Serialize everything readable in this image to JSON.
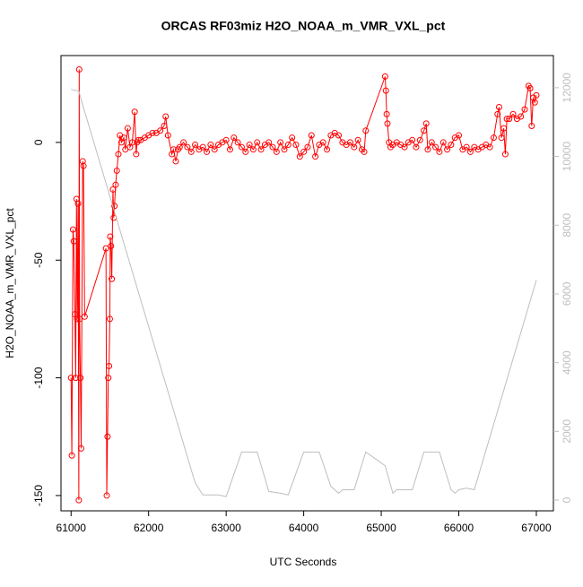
{
  "chart_data": {
    "type": "line",
    "title": "ORCAS RF03miz H2O_NOAA_m_VMR_VXL_pct",
    "xlabel": "UTC Seconds",
    "ylabel": "H2O_NOAA_m_VMR_VXL_pct",
    "xlim": [
      60870,
      67220
    ],
    "xticks": [
      61000,
      62000,
      63000,
      64000,
      65000,
      66000,
      67000
    ],
    "ylim": [
      -156.5,
      36.9
    ],
    "yticks": [
      -150,
      -100,
      -50,
      0
    ],
    "y2lim": [
      -313,
      12936
    ],
    "y2ticks": [
      0,
      2000,
      4000,
      6000,
      8000,
      10000,
      12000
    ],
    "grid": false,
    "series": [
      {
        "color": "#ff0000",
        "marker": "circle",
        "x": [
          61000,
          61010,
          61025,
          61035,
          61050,
          61060,
          61070,
          61080,
          61090,
          61100,
          61105,
          61110,
          61120,
          61130,
          61150,
          61160,
          61175,
          61450,
          61460,
          61470,
          61480,
          61490,
          61500,
          61505,
          61515,
          61525,
          61540,
          61550,
          61560,
          61575,
          61590,
          61610,
          61630,
          61650,
          61680,
          61700,
          61730,
          61760,
          61790,
          61820,
          61840,
          61850,
          61870,
          61900,
          61950,
          62000,
          62050,
          62100,
          62150,
          62200,
          62220,
          62250,
          62300,
          62320,
          62350,
          62380,
          62400,
          62450,
          62500,
          62550,
          62600,
          62650,
          62700,
          62750,
          62800,
          62850,
          62900,
          62950,
          63000,
          63050,
          63100,
          63150,
          63200,
          63250,
          63300,
          63350,
          63400,
          63450,
          63500,
          63550,
          63600,
          63650,
          63700,
          63750,
          63800,
          63850,
          63900,
          63950,
          64000,
          64050,
          64100,
          64150,
          64200,
          64250,
          64300,
          64350,
          64400,
          64450,
          64500,
          64550,
          64600,
          64650,
          64700,
          64750,
          64780,
          64800,
          65050,
          65060,
          65070,
          65080,
          65100,
          65120,
          65150,
          65200,
          65250,
          65300,
          65350,
          65400,
          65450,
          65500,
          65550,
          65580,
          65600,
          65650,
          65700,
          65750,
          65800,
          65850,
          65900,
          65950,
          66000,
          66050,
          66100,
          66150,
          66200,
          66250,
          66300,
          66350,
          66400,
          66450,
          66500,
          66520,
          66550,
          66580,
          66600,
          66620,
          66650,
          66700,
          66750,
          66800,
          66850,
          66900,
          66920,
          66940,
          66960,
          66980,
          67000
        ],
        "values": [
          -100,
          -133,
          -37,
          -42,
          -73,
          -100,
          -24,
          -75,
          -26,
          -152,
          31,
          -75,
          -100,
          -130,
          -8,
          -10,
          -74,
          -45,
          -150,
          -125,
          -100,
          -95,
          -75,
          -40,
          -44,
          -58,
          -20,
          -32,
          -27,
          -18,
          -12,
          -5,
          3,
          0,
          2,
          -3,
          6,
          -2,
          0,
          13,
          -5,
          0,
          1,
          1,
          2,
          3,
          4,
          4,
          5,
          7,
          11,
          3,
          -5,
          -3,
          -8,
          -3,
          -2,
          0,
          -2,
          -4,
          -1,
          -3,
          -2,
          -4,
          -1,
          -3,
          -1,
          0,
          1,
          -3,
          2,
          0,
          -2,
          -4,
          -1,
          -3,
          0,
          -3,
          -1,
          0,
          -2,
          -4,
          0,
          -3,
          -1,
          2,
          -1,
          -6,
          -4,
          -2,
          3,
          -6,
          -1,
          0,
          -3,
          3,
          4,
          3,
          0,
          -1,
          0,
          -2,
          1,
          -3,
          -4,
          5,
          28,
          22,
          12,
          8,
          0,
          -2,
          -1,
          0,
          -1,
          -2,
          0,
          1,
          -2,
          1,
          5,
          8,
          -3,
          0,
          -2,
          -4,
          0,
          -3,
          -1,
          2,
          3,
          -3,
          -2,
          -4,
          -2,
          -3,
          -2,
          -1,
          -2,
          2,
          12,
          15,
          2,
          6,
          -5,
          10,
          10,
          12,
          10,
          11,
          14,
          24,
          23,
          7,
          19,
          17,
          20
        ]
      },
      {
        "color": "#bebebe",
        "axis": "y2",
        "x": [
          61000,
          61100,
          61150,
          62600,
          62700,
          62900,
          63000,
          63200,
          63400,
          63550,
          63700,
          63800,
          64000,
          64200,
          64350,
          64450,
          64500,
          64650,
          64800,
          65050,
          65150,
          65200,
          65400,
          65550,
          65750,
          65900,
          65950,
          66000,
          66100,
          66200,
          67000
        ],
        "values": [
          11950,
          11900,
          11500,
          500,
          150,
          150,
          100,
          1400,
          1400,
          250,
          200,
          150,
          1400,
          1400,
          400,
          200,
          300,
          300,
          1400,
          1000,
          200,
          300,
          300,
          1400,
          1400,
          300,
          200,
          300,
          350,
          300,
          6400
        ]
      }
    ]
  }
}
